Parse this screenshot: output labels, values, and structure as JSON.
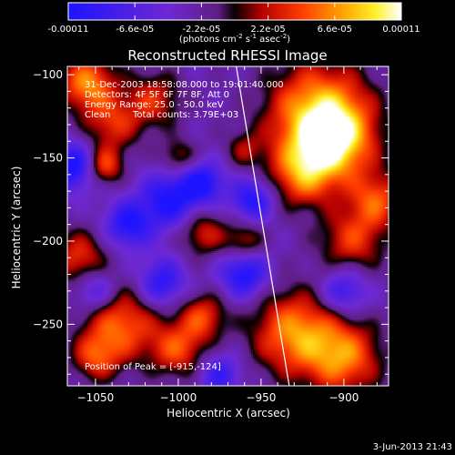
{
  "colorbar": {
    "tick_labels": [
      "-0.00011",
      "-6.6e-05",
      "-2.2e-05",
      "2.2e-05",
      "6.6e-05",
      "0.00011"
    ],
    "range": [
      -0.00011,
      0.00011
    ],
    "unit_label_parts": [
      "(photons cm",
      "-2",
      " s",
      "-1",
      " asec",
      "-2",
      ")"
    ]
  },
  "title": "Reconstructed RHESSI Image",
  "annotations": {
    "time_range": "31-Dec-2003 18:58:08.000 to 19:01:40.000",
    "detectors": "Detectors: 4F 5F 6F 7F 8F, Att 0",
    "energy_range": "Energy Range: 25.0 - 50.0 keV",
    "clean_label": "Clean",
    "total_counts": "Total counts: 3.79E+03",
    "peak_position": "Position of Peak = [-915,-124]"
  },
  "footer_timestamp": "3-Jun-2013 21:43",
  "chart_data": {
    "type": "heatmap",
    "title": "Reconstructed RHESSI Image",
    "xlabel": "Heliocentric X (arcsec)",
    "ylabel": "Heliocentric Y (arcsec)",
    "xlim": [
      -1067,
      -873
    ],
    "ylim": [
      -287,
      -95
    ],
    "x_ticks": [
      -1050,
      -1000,
      -950,
      -900
    ],
    "y_ticks": [
      -100,
      -150,
      -200,
      -250
    ],
    "x_tick_labels": [
      "−1050",
      "−1000",
      "−950",
      "−900"
    ],
    "y_tick_labels": [
      "−100",
      "−150",
      "−200",
      "−250"
    ],
    "colormap": "blue-purple-black-red-orange-yellow-white",
    "peak": {
      "x": -915,
      "y": -124
    },
    "limb_line": [
      [
        -965,
        -95
      ],
      [
        -933,
        -287
      ]
    ],
    "bright_sources": [
      {
        "x": -915,
        "y": -124,
        "amplitude": 1.0,
        "radius": 22
      },
      {
        "x": -905,
        "y": -140,
        "amplitude": 0.8,
        "radius": 16
      },
      {
        "x": -925,
        "y": -160,
        "amplitude": 0.7,
        "radius": 14
      },
      {
        "x": -880,
        "y": -175,
        "amplitude": 0.65,
        "radius": 12
      },
      {
        "x": -895,
        "y": -200,
        "amplitude": 0.6,
        "radius": 14
      },
      {
        "x": -930,
        "y": -255,
        "amplitude": 0.85,
        "radius": 18
      },
      {
        "x": -900,
        "y": -270,
        "amplitude": 0.8,
        "radius": 16
      },
      {
        "x": -1055,
        "y": -105,
        "amplitude": 0.85,
        "radius": 12
      },
      {
        "x": -1040,
        "y": -130,
        "amplitude": 0.55,
        "radius": 12
      },
      {
        "x": -1045,
        "y": -155,
        "amplitude": 0.7,
        "radius": 8
      },
      {
        "x": -1015,
        "y": -115,
        "amplitude": 0.55,
        "radius": 12
      },
      {
        "x": -1060,
        "y": -210,
        "amplitude": 0.6,
        "radius": 12
      },
      {
        "x": -1035,
        "y": -250,
        "amplitude": 0.75,
        "radius": 16
      },
      {
        "x": -1050,
        "y": -270,
        "amplitude": 0.55,
        "radius": 10
      },
      {
        "x": -1000,
        "y": -265,
        "amplitude": 0.65,
        "radius": 12
      },
      {
        "x": -985,
        "y": -245,
        "amplitude": 0.6,
        "radius": 10
      },
      {
        "x": -985,
        "y": -195,
        "amplitude": 0.55,
        "radius": 10
      },
      {
        "x": -960,
        "y": -200,
        "amplitude": 0.5,
        "radius": 8
      },
      {
        "x": -1000,
        "y": -150,
        "amplitude": 0.45,
        "radius": 8
      },
      {
        "x": -960,
        "y": -145,
        "amplitude": 0.35,
        "radius": 8
      }
    ],
    "dark_sources": [
      {
        "x": -1063,
        "y": -155,
        "amplitude": -0.8,
        "radius": 10
      },
      {
        "x": -1005,
        "y": -175,
        "amplitude": -0.75,
        "radius": 12
      },
      {
        "x": -985,
        "y": -165,
        "amplitude": -0.7,
        "radius": 9
      },
      {
        "x": -1030,
        "y": -190,
        "amplitude": -0.7,
        "radius": 10
      },
      {
        "x": -960,
        "y": -220,
        "amplitude": -0.75,
        "radius": 10
      },
      {
        "x": -1010,
        "y": -225,
        "amplitude": -0.65,
        "radius": 10
      },
      {
        "x": -955,
        "y": -175,
        "amplitude": -0.7,
        "radius": 9
      },
      {
        "x": -900,
        "y": -230,
        "amplitude": -0.6,
        "radius": 10
      },
      {
        "x": -1050,
        "y": -230,
        "amplitude": -0.55,
        "radius": 9
      },
      {
        "x": -975,
        "y": -280,
        "amplitude": -0.55,
        "radius": 9
      }
    ]
  }
}
